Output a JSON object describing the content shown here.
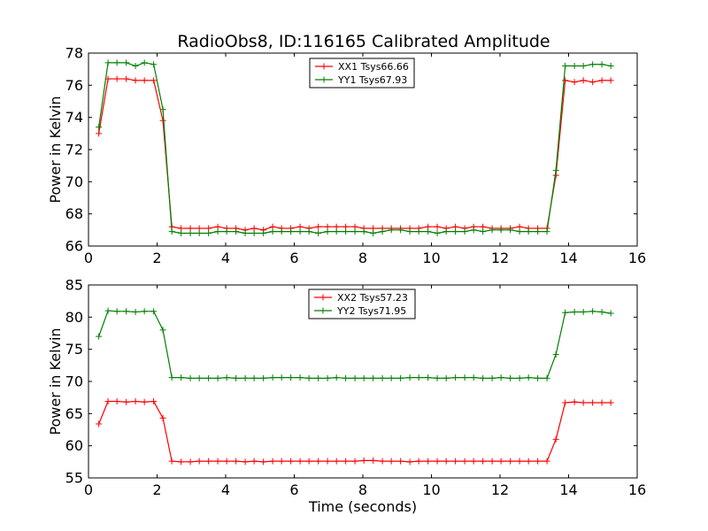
{
  "chart_data": [
    {
      "type": "line",
      "title": "RadioObs8, ID:116165 Calibrated Amplitude",
      "xlabel": "",
      "ylabel": "Power in Kelvin",
      "xlim": [
        0,
        16
      ],
      "ylim": [
        66,
        78
      ],
      "xticks": [
        0,
        2,
        4,
        6,
        8,
        10,
        12,
        14,
        16
      ],
      "yticks": [
        66,
        68,
        70,
        72,
        74,
        76,
        78
      ],
      "legend_position": "top-center",
      "x": [
        0.3,
        0.57,
        0.83,
        1.1,
        1.37,
        1.63,
        1.9,
        2.17,
        2.43,
        2.7,
        2.97,
        3.23,
        3.5,
        3.77,
        4.03,
        4.3,
        4.57,
        4.83,
        5.1,
        5.37,
        5.63,
        5.9,
        6.17,
        6.43,
        6.7,
        6.97,
        7.23,
        7.5,
        7.77,
        8.03,
        8.3,
        8.57,
        8.83,
        9.1,
        9.37,
        9.63,
        9.9,
        10.17,
        10.43,
        10.7,
        10.97,
        11.23,
        11.5,
        11.77,
        12.03,
        12.3,
        12.57,
        12.83,
        13.1,
        13.37,
        13.63,
        13.9,
        14.17,
        14.43,
        14.7,
        14.97,
        15.23
      ],
      "series": [
        {
          "name": "XX1 Tsys66.66",
          "color": "#ff0000",
          "values": [
            73.0,
            76.4,
            76.4,
            76.4,
            76.3,
            76.3,
            76.3,
            73.8,
            67.2,
            67.1,
            67.1,
            67.1,
            67.1,
            67.2,
            67.1,
            67.1,
            67.0,
            67.1,
            67.0,
            67.2,
            67.1,
            67.1,
            67.2,
            67.1,
            67.2,
            67.2,
            67.2,
            67.2,
            67.2,
            67.1,
            67.1,
            67.1,
            67.1,
            67.1,
            67.1,
            67.1,
            67.2,
            67.2,
            67.1,
            67.2,
            67.1,
            67.2,
            67.2,
            67.1,
            67.1,
            67.1,
            67.2,
            67.1,
            67.1,
            67.1,
            70.4,
            76.3,
            76.2,
            76.3,
            76.2,
            76.3,
            76.3
          ]
        },
        {
          "name": "YY1 Tsys67.93",
          "color": "#008000",
          "values": [
            73.4,
            77.4,
            77.4,
            77.4,
            77.2,
            77.4,
            77.3,
            74.5,
            66.9,
            66.8,
            66.8,
            66.8,
            66.8,
            66.9,
            66.9,
            66.9,
            66.8,
            66.8,
            66.8,
            66.9,
            66.9,
            66.9,
            66.9,
            66.9,
            66.8,
            66.9,
            66.9,
            66.9,
            66.9,
            66.9,
            66.8,
            66.9,
            67.0,
            67.0,
            66.9,
            66.9,
            66.9,
            66.8,
            66.9,
            66.9,
            66.9,
            67.0,
            66.9,
            67.0,
            67.0,
            67.0,
            66.9,
            66.9,
            66.9,
            66.9,
            70.7,
            77.2,
            77.2,
            77.2,
            77.3,
            77.3,
            77.2
          ]
        }
      ]
    },
    {
      "type": "line",
      "title": "",
      "xlabel": "Time (seconds)",
      "ylabel": "Power in Kelvin",
      "xlim": [
        0,
        16
      ],
      "ylim": [
        55,
        85
      ],
      "xticks": [
        0,
        2,
        4,
        6,
        8,
        10,
        12,
        14,
        16
      ],
      "yticks": [
        55,
        60,
        65,
        70,
        75,
        80,
        85
      ],
      "legend_position": "top-center",
      "x": [
        0.3,
        0.57,
        0.83,
        1.1,
        1.37,
        1.63,
        1.9,
        2.17,
        2.43,
        2.7,
        2.97,
        3.23,
        3.5,
        3.77,
        4.03,
        4.3,
        4.57,
        4.83,
        5.1,
        5.37,
        5.63,
        5.9,
        6.17,
        6.43,
        6.7,
        6.97,
        7.23,
        7.5,
        7.77,
        8.03,
        8.3,
        8.57,
        8.83,
        9.1,
        9.37,
        9.63,
        9.9,
        10.17,
        10.43,
        10.7,
        10.97,
        11.23,
        11.5,
        11.77,
        12.03,
        12.3,
        12.57,
        12.83,
        13.1,
        13.37,
        13.63,
        13.9,
        14.17,
        14.43,
        14.7,
        14.97,
        15.23
      ],
      "series": [
        {
          "name": "XX2 Tsys57.23",
          "color": "#ff0000",
          "values": [
            63.4,
            66.9,
            66.9,
            66.8,
            66.9,
            66.8,
            66.9,
            64.3,
            57.6,
            57.5,
            57.5,
            57.6,
            57.6,
            57.6,
            57.6,
            57.6,
            57.5,
            57.6,
            57.5,
            57.6,
            57.6,
            57.6,
            57.6,
            57.6,
            57.6,
            57.6,
            57.6,
            57.6,
            57.6,
            57.7,
            57.7,
            57.6,
            57.6,
            57.6,
            57.5,
            57.6,
            57.6,
            57.6,
            57.6,
            57.6,
            57.6,
            57.6,
            57.6,
            57.6,
            57.6,
            57.6,
            57.6,
            57.6,
            57.6,
            57.6,
            61.0,
            66.7,
            66.8,
            66.7,
            66.7,
            66.7,
            66.7
          ]
        },
        {
          "name": "YY2 Tsys71.95",
          "color": "#008000",
          "values": [
            77.0,
            81.0,
            80.9,
            80.9,
            80.8,
            80.9,
            80.9,
            78.0,
            70.6,
            70.6,
            70.5,
            70.5,
            70.5,
            70.5,
            70.6,
            70.5,
            70.5,
            70.5,
            70.5,
            70.6,
            70.6,
            70.6,
            70.6,
            70.5,
            70.5,
            70.5,
            70.6,
            70.5,
            70.5,
            70.5,
            70.5,
            70.5,
            70.5,
            70.5,
            70.6,
            70.6,
            70.6,
            70.5,
            70.5,
            70.6,
            70.6,
            70.6,
            70.5,
            70.5,
            70.6,
            70.5,
            70.5,
            70.6,
            70.5,
            70.5,
            74.2,
            80.7,
            80.8,
            80.8,
            80.9,
            80.8,
            80.6
          ]
        }
      ]
    }
  ]
}
